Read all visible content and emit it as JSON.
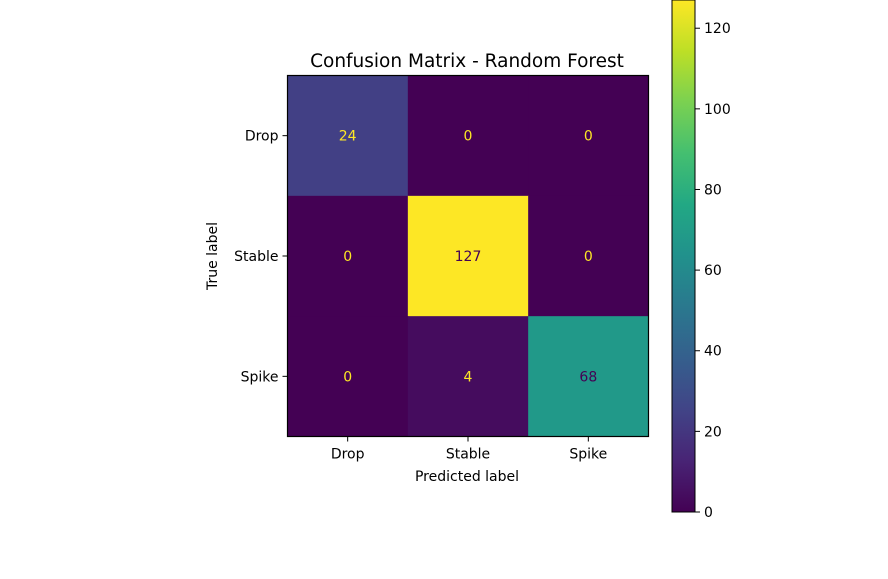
{
  "chart_data": {
    "type": "heatmap",
    "title": "Confusion Matrix - Random Forest",
    "xlabel": "Predicted label",
    "ylabel": "True label",
    "x_categories": [
      "Drop",
      "Stable",
      "Spike"
    ],
    "y_categories": [
      "Drop",
      "Stable",
      "Spike"
    ],
    "matrix": [
      [
        24,
        0,
        0
      ],
      [
        0,
        127,
        0
      ],
      [
        0,
        4,
        68
      ]
    ],
    "colormap": "viridis",
    "colorbar": {
      "range": [
        0,
        127
      ],
      "ticks": [
        0,
        20,
        40,
        60,
        80,
        100,
        120
      ]
    },
    "text_colors": {
      "light": "#fde725",
      "dark": "#440154"
    }
  }
}
